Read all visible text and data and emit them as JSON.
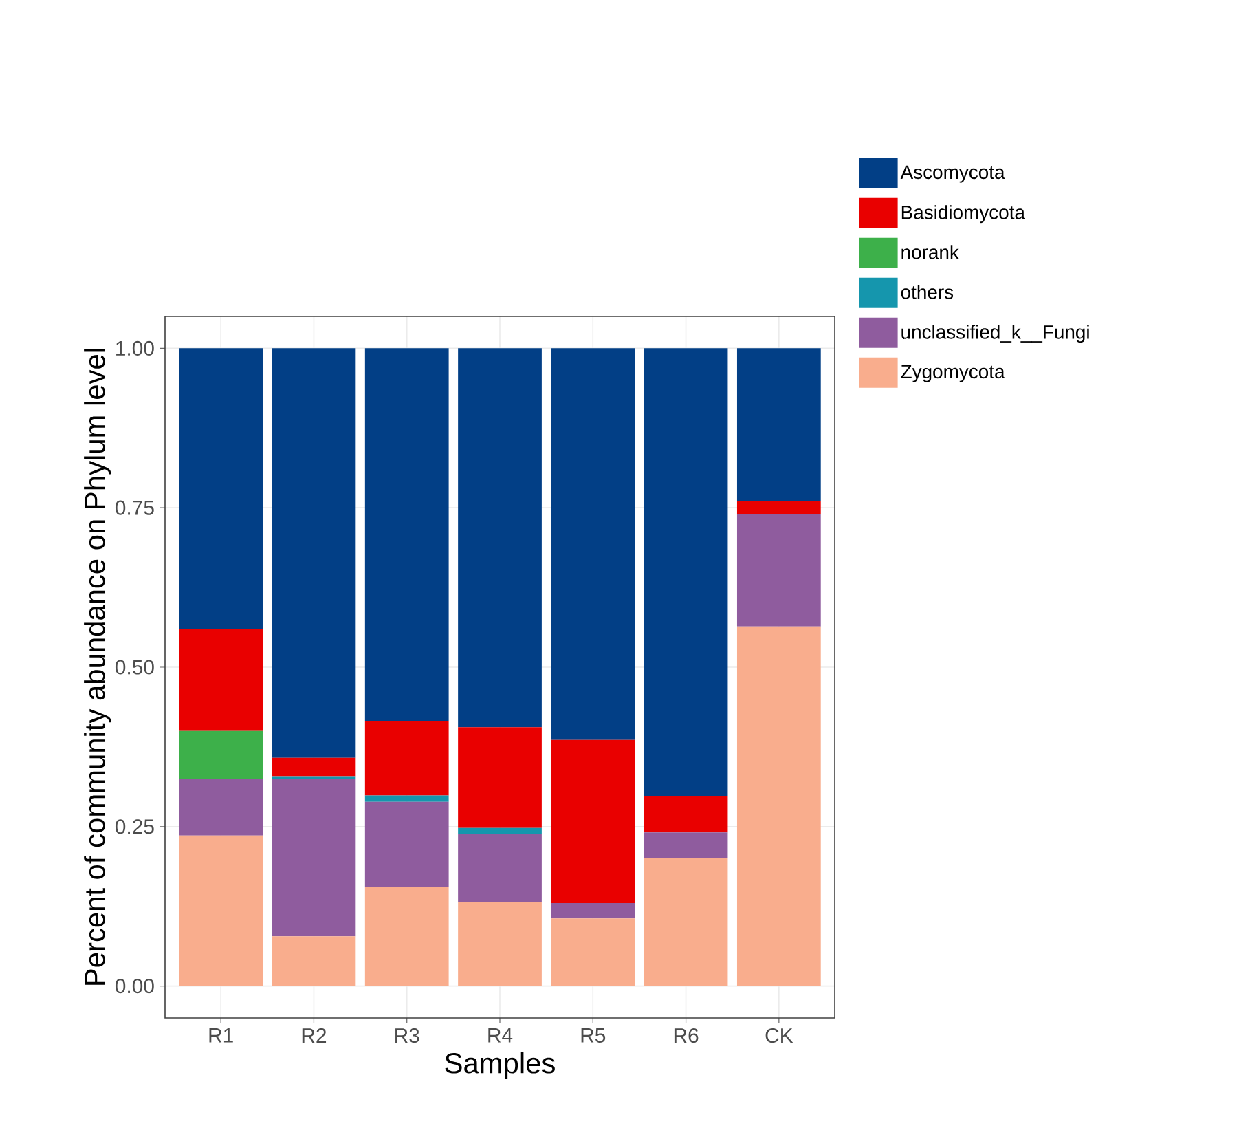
{
  "chart_data": {
    "type": "bar",
    "stacked": true,
    "xlabel": "Samples",
    "ylabel": "Percent of community abundance on Phylum level",
    "categories": [
      "R1",
      "R2",
      "R3",
      "R4",
      "R5",
      "R6",
      "CK"
    ],
    "series": [
      {
        "name": "Zygomycota",
        "color": "#f9ad8d",
        "values": [
          0.236,
          0.078,
          0.155,
          0.132,
          0.106,
          0.201,
          0.564
        ]
      },
      {
        "name": "unclassified_k__Fungi",
        "color": "#8f5c9e",
        "values": [
          0.089,
          0.247,
          0.134,
          0.106,
          0.024,
          0.04,
          0.176
        ]
      },
      {
        "name": "others",
        "color": "#1596ad",
        "values": [
          0,
          0.004,
          0.01,
          0.01,
          0,
          0,
          0
        ]
      },
      {
        "name": "norank",
        "color": "#3db04a",
        "values": [
          0.075,
          0,
          0,
          0,
          0,
          0,
          0
        ]
      },
      {
        "name": "Basidiomycota",
        "color": "#e90000",
        "values": [
          0.16,
          0.029,
          0.117,
          0.158,
          0.256,
          0.057,
          0.02
        ]
      },
      {
        "name": "Ascomycota",
        "color": "#023f86",
        "values": [
          0.44,
          0.642,
          0.584,
          0.594,
          0.614,
          0.702,
          0.24
        ]
      }
    ],
    "ylim": [
      -0.05,
      1.05
    ],
    "yticks": [
      {
        "value": 0,
        "label": "0.00"
      },
      {
        "value": 0.25,
        "label": "0.25"
      },
      {
        "value": 0.5,
        "label": "0.50"
      },
      {
        "value": 0.75,
        "label": "0.75"
      },
      {
        "value": 1,
        "label": "1.00"
      }
    ],
    "grid": true,
    "legend": "right"
  }
}
